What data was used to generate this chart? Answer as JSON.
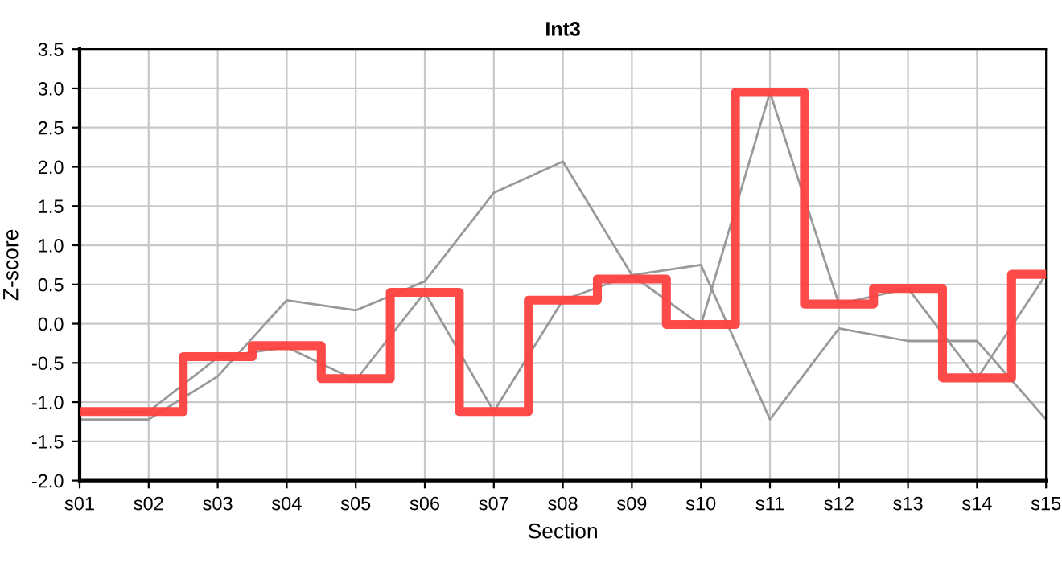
{
  "chart_data": {
    "type": "line",
    "title": "Int3",
    "xlabel": "Section",
    "ylabel": "Z-score",
    "categories": [
      "s01",
      "s02",
      "s03",
      "s04",
      "s05",
      "s06",
      "s07",
      "s08",
      "s09",
      "s10",
      "s11",
      "s12",
      "s13",
      "s14",
      "s15"
    ],
    "series": [
      {
        "color": "#999999",
        "values": [
          -1.22,
          -1.22,
          -0.67,
          0.3,
          0.17,
          0.54,
          1.67,
          2.07,
          0.62,
          0.75,
          -1.22,
          -0.06,
          -0.22,
          -0.22,
          -1.22
        ]
      },
      {
        "color": "#999999",
        "values": [
          -1.14,
          -1.12,
          -0.43,
          -0.3,
          -0.72,
          0.4,
          -1.12,
          0.3,
          0.62,
          -0.02,
          2.95,
          0.25,
          0.45,
          -0.7,
          0.63
        ]
      },
      {
        "type": "step",
        "color": "#ff4040",
        "values": [
          -1.12,
          -1.12,
          -0.42,
          -0.28,
          -0.7,
          0.4,
          -1.12,
          0.3,
          0.57,
          -0.01,
          2.95,
          0.25,
          0.45,
          -0.69,
          0.63
        ]
      }
    ],
    "ylim": [
      -2.0,
      3.5
    ],
    "yticks": [
      {
        "value": -2.0,
        "label": "-2.0"
      },
      {
        "value": -1.5,
        "label": "-1.5"
      },
      {
        "value": -1.0,
        "label": "-1.0"
      },
      {
        "value": -0.5,
        "label": "-0.5"
      },
      {
        "value": 0.0,
        "label": "0.0"
      },
      {
        "value": 0.5,
        "label": "0.5"
      },
      {
        "value": 1.0,
        "label": "1.0"
      },
      {
        "value": 1.5,
        "label": "1.5"
      },
      {
        "value": 2.0,
        "label": "2.0"
      },
      {
        "value": 2.5,
        "label": "2.5"
      },
      {
        "value": 3.0,
        "label": "3.0"
      },
      {
        "value": 3.5,
        "label": "3.5"
      }
    ],
    "grid": true,
    "legend": false,
    "marker": "none",
    "line_style": "solid"
  }
}
